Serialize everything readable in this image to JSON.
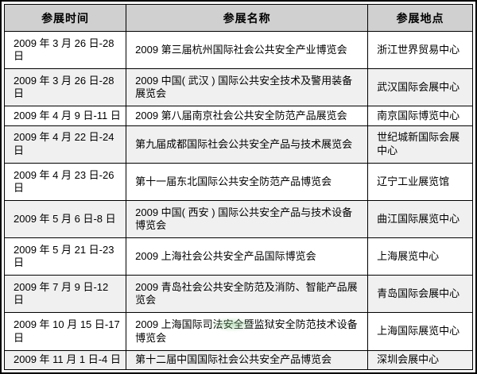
{
  "table": {
    "columns": [
      {
        "key": "time",
        "label": "参展时间"
      },
      {
        "key": "name",
        "label": "参展名称"
      },
      {
        "key": "location",
        "label": "参展地点"
      }
    ],
    "rows": [
      {
        "time": "2009 年 3 月 26 日-28 日",
        "name": "2009 第三届杭州国际社会公共安全产业博览会",
        "location": "浙江世界贸易中心"
      },
      {
        "time": "2009 年 3 月 26 日-28 日",
        "name": "2009 中国( 武汉 ) 国际公共安全技术及警用装备展览会",
        "location": "武汉国际会展中心"
      },
      {
        "time": "2009 年 4 月 9 日-11 日",
        "name": "2009 第八届南京社会公共安全防范产品展览会",
        "location": "南京国际博览中心"
      },
      {
        "time": "2009 年 4 月 22 日-24 日",
        "name": "第九届成都国际社会公共安全产品与技术展览会",
        "location": "世纪城新国际会展中心"
      },
      {
        "time": "2009 年 4 月 23 日-26 日",
        "name": "第十一届东北国际公共安全防范产品博览会",
        "location": "辽宁工业展览馆"
      },
      {
        "time": "2009 年 5 月 6 日-8 日",
        "name": "2009 中国( 西安 ) 国际公共安全产品与技术设备博览会",
        "location": "曲江国际展览中心"
      },
      {
        "time": "2009 年 5 月 21 日-23 日",
        "name": "2009 上海社会公共安全产品国际博览会",
        "location": "上海展览中心"
      },
      {
        "time": "2009 年 7 月 9 日-12 日",
        "name": "2009 青岛社会公共安全防范及消防、智能产品展览会",
        "location": "青岛国际会展中心"
      },
      {
        "time": "2009 年 10 月 15 日-17 日",
        "name": "2009 上海国际司法安全暨监狱安全防范技术设备博览会",
        "location": "上海国际展览中心"
      },
      {
        "time": "2009 年 11 月 1 日-4 日",
        "name": "第十二届中国国际社会公共安全产品博览会",
        "location": "深圳会展中心"
      }
    ]
  },
  "colors": {
    "header_bg": "#d0d0d0",
    "alt_row_bg": "#f0f0f0",
    "border": "#000000",
    "watermark_green": "#8cc88c"
  }
}
